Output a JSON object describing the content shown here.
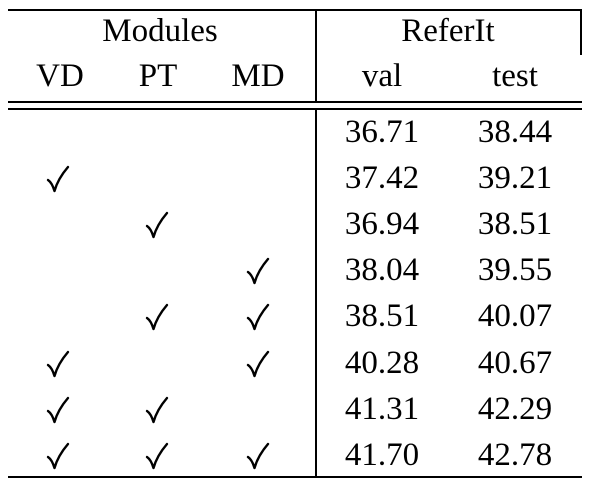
{
  "table": {
    "group_headers": {
      "modules": "Modules",
      "referit": "ReferIt"
    },
    "columns": {
      "vd": "VD",
      "pt": "PT",
      "md": "MD",
      "val": "val",
      "test": "test"
    },
    "check_glyph": "✓",
    "rows": [
      {
        "vd": false,
        "pt": false,
        "md": false,
        "val": "36.71",
        "test": "38.44"
      },
      {
        "vd": true,
        "pt": false,
        "md": false,
        "val": "37.42",
        "test": "39.21"
      },
      {
        "vd": false,
        "pt": true,
        "md": false,
        "val": "36.94",
        "test": "38.51"
      },
      {
        "vd": false,
        "pt": false,
        "md": true,
        "val": "38.04",
        "test": "39.55"
      },
      {
        "vd": false,
        "pt": true,
        "md": true,
        "val": "38.51",
        "test": "40.07"
      },
      {
        "vd": true,
        "pt": false,
        "md": true,
        "val": "40.28",
        "test": "40.67"
      },
      {
        "vd": true,
        "pt": true,
        "md": false,
        "val": "41.31",
        "test": "42.29"
      },
      {
        "vd": true,
        "pt": true,
        "md": true,
        "val": "41.70",
        "test": "42.78"
      }
    ]
  }
}
